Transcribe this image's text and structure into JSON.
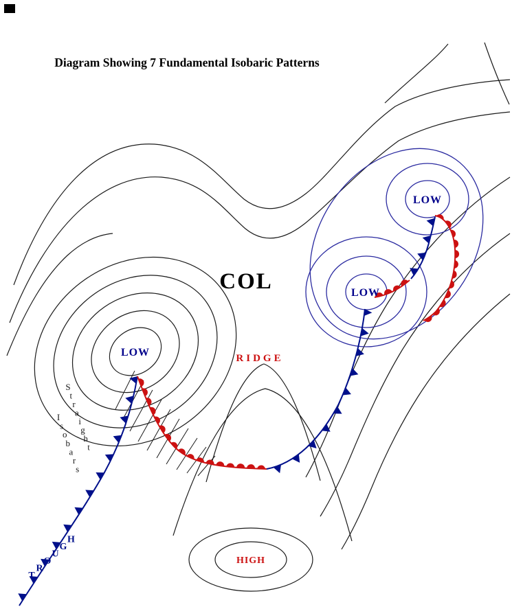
{
  "title": "Diagram Showing 7 Fundamental Isobaric Patterns",
  "labels": {
    "col": "COL",
    "ridge": "RIDGE",
    "high": "HIGH",
    "low_left": "LOW",
    "low_mid": "LOW",
    "low_top": "LOW",
    "straight": "Straight",
    "isobars": "Isobars",
    "trough": "TROUGH"
  },
  "colors": {
    "title": "#000000",
    "isobar": "#1a1a1a",
    "blue_isobar": "#2a2aa0",
    "low_label": "#00008b",
    "ridge_label": "#cc1111",
    "high_label": "#cc1111",
    "warm_front": "#cc1111",
    "cold_front": "#00108b"
  }
}
